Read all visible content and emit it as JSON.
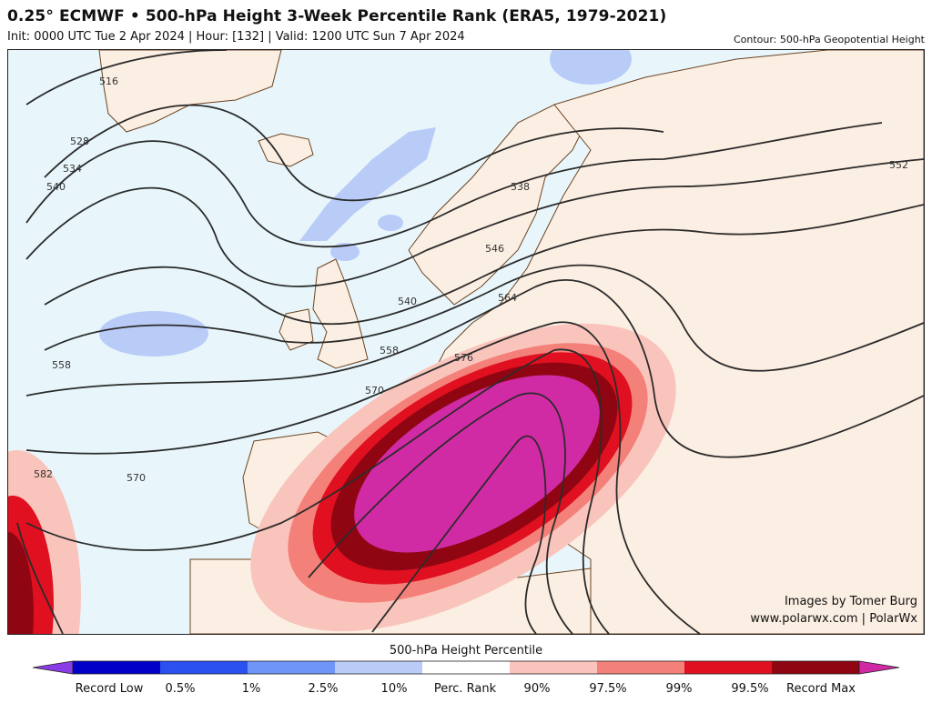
{
  "header": {
    "title": "0.25° ECMWF • 500-hPa Height 3-Week Percentile Rank (ERA5, 1979-2021)",
    "subtitle": "Init: 0000 UTC Tue 2 Apr 2024 | Hour: [132] | Valid: 1200 UTC Sun 7 Apr 2024",
    "contour_note": "Contour: 500-hPa Geopotential Height"
  },
  "credit": {
    "line1": "Images by Tomer Burg",
    "line2": "www.polarwx.com | PolarWx"
  },
  "colorbar": {
    "title": "500-hPa Height Percentile",
    "labels": [
      "Record Low",
      "0.5%",
      "1%",
      "2.5%",
      "10%",
      "Perc. Rank",
      "90%",
      "97.5%",
      "99%",
      "99.5%",
      "Record Max"
    ],
    "colors": [
      "#8a3ce6",
      "#0000c8",
      "#2a50f0",
      "#6f95f8",
      "#b9ccf8",
      "#ffffff",
      "#f9c4bc",
      "#f4807a",
      "#e01020",
      "#8f0612",
      "#d12aa5"
    ]
  },
  "contour_labels": [
    "516",
    "528",
    "534",
    "540",
    "538",
    "546",
    "552",
    "558",
    "564",
    "558",
    "540",
    "570",
    "576",
    "570",
    "582"
  ]
}
